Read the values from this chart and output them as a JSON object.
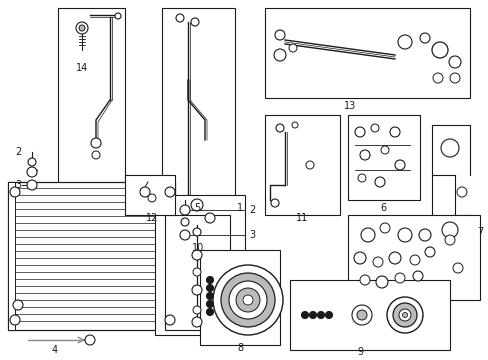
{
  "bg_color": "#ffffff",
  "line_color": "#1a1a1a",
  "gray_color": "#888888",
  "light_gray": "#bbbbbb",
  "dark_gray": "#555555",
  "figsize": [
    4.89,
    3.6
  ],
  "dpi": 100,
  "xlim": [
    0,
    489
  ],
  "ylim": [
    0,
    360
  ]
}
